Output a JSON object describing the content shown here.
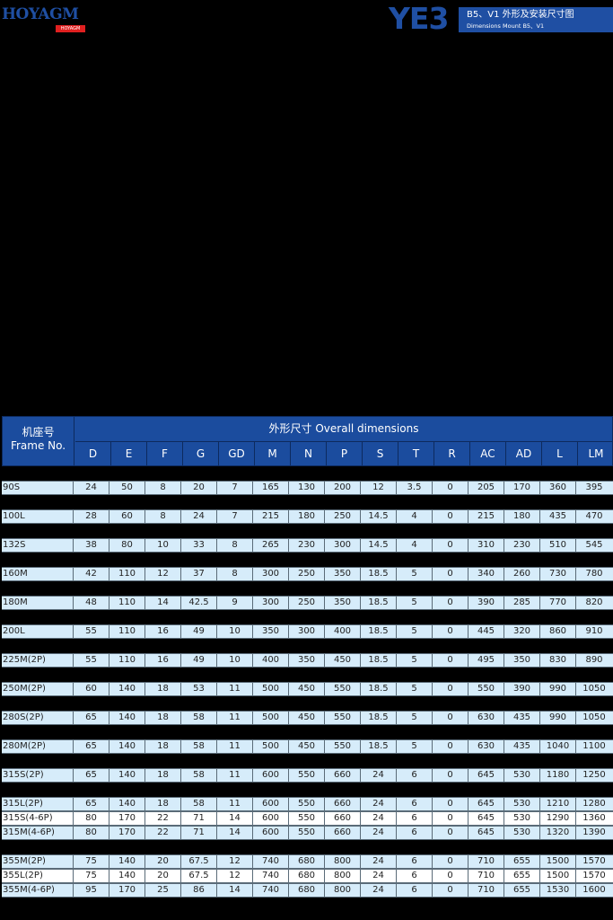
{
  "brand": {
    "logo": "HOYAGM",
    "logo_sub": "HOYAGM MOTOR"
  },
  "header": {
    "model": "YE3",
    "title_cn": "B5、V1 外形及安装尺寸图",
    "title_en": "Dimensions Mount B5、V1"
  },
  "table": {
    "frame_header_cn": "机座号",
    "frame_header_en": "Frame No.",
    "span_header": "外形尺寸 Overall dimensions",
    "columns": [
      "D",
      "E",
      "F",
      "G",
      "GD",
      "M",
      "N",
      "P",
      "S",
      "T",
      "R",
      "AC",
      "AD",
      "L",
      "LM"
    ],
    "rows": [
      {
        "frame": "90S",
        "values": [
          "24",
          "50",
          "8",
          "20",
          "7",
          "165",
          "130",
          "200",
          "12",
          "3.5",
          "0",
          "205",
          "170",
          "360",
          "395"
        ]
      },
      {
        "frame": "100L",
        "values": [
          "28",
          "60",
          "8",
          "24",
          "7",
          "215",
          "180",
          "250",
          "14.5",
          "4",
          "0",
          "215",
          "180",
          "435",
          "470"
        ]
      },
      {
        "frame": "132S",
        "values": [
          "38",
          "80",
          "10",
          "33",
          "8",
          "265",
          "230",
          "300",
          "14.5",
          "4",
          "0",
          "310",
          "230",
          "510",
          "545"
        ]
      },
      {
        "frame": "160M",
        "values": [
          "42",
          "110",
          "12",
          "37",
          "8",
          "300",
          "250",
          "350",
          "18.5",
          "5",
          "0",
          "340",
          "260",
          "730",
          "780"
        ]
      },
      {
        "frame": "180M",
        "values": [
          "48",
          "110",
          "14",
          "42.5",
          "9",
          "300",
          "250",
          "350",
          "18.5",
          "5",
          "0",
          "390",
          "285",
          "770",
          "820"
        ]
      },
      {
        "frame": "200L",
        "values": [
          "55",
          "110",
          "16",
          "49",
          "10",
          "350",
          "300",
          "400",
          "18.5",
          "5",
          "0",
          "445",
          "320",
          "860",
          "910"
        ]
      },
      {
        "frame": "225M(2P)",
        "values": [
          "55",
          "110",
          "16",
          "49",
          "10",
          "400",
          "350",
          "450",
          "18.5",
          "5",
          "0",
          "495",
          "350",
          "830",
          "890"
        ]
      },
      {
        "frame": "250M(2P)",
        "values": [
          "60",
          "140",
          "18",
          "53",
          "11",
          "500",
          "450",
          "550",
          "18.5",
          "5",
          "0",
          "550",
          "390",
          "990",
          "1050"
        ]
      },
      {
        "frame": "280S(2P)",
        "values": [
          "65",
          "140",
          "18",
          "58",
          "11",
          "500",
          "450",
          "550",
          "18.5",
          "5",
          "0",
          "630",
          "435",
          "990",
          "1050"
        ]
      },
      {
        "frame": "280M(2P)",
        "values": [
          "65",
          "140",
          "18",
          "58",
          "11",
          "500",
          "450",
          "550",
          "18.5",
          "5",
          "0",
          "630",
          "435",
          "1040",
          "1100"
        ]
      },
      {
        "frame": "315S(2P)",
        "values": [
          "65",
          "140",
          "18",
          "58",
          "11",
          "600",
          "550",
          "660",
          "24",
          "6",
          "0",
          "645",
          "530",
          "1180",
          "1250"
        ]
      },
      {
        "frame": "315L(2P)",
        "values": [
          "65",
          "140",
          "18",
          "58",
          "11",
          "600",
          "550",
          "660",
          "24",
          "6",
          "0",
          "645",
          "530",
          "1210",
          "1280"
        ]
      },
      {
        "frame": "315S(4-6P)",
        "values": [
          "80",
          "170",
          "22",
          "71",
          "14",
          "600",
          "550",
          "660",
          "24",
          "6",
          "0",
          "645",
          "530",
          "1290",
          "1360"
        ]
      },
      {
        "frame": "315M(4-6P)",
        "values": [
          "80",
          "170",
          "22",
          "71",
          "14",
          "600",
          "550",
          "660",
          "24",
          "6",
          "0",
          "645",
          "530",
          "1320",
          "1390"
        ]
      },
      {
        "frame": "355M(2P)",
        "values": [
          "75",
          "140",
          "20",
          "67.5",
          "12",
          "740",
          "680",
          "800",
          "24",
          "6",
          "0",
          "710",
          "655",
          "1500",
          "1570"
        ]
      },
      {
        "frame": "355L(2P)",
        "values": [
          "75",
          "140",
          "20",
          "67.5",
          "12",
          "740",
          "680",
          "800",
          "24",
          "6",
          "0",
          "710",
          "655",
          "1500",
          "1570"
        ]
      },
      {
        "frame": "355M(4-6P)",
        "values": [
          "95",
          "170",
          "25",
          "86",
          "14",
          "740",
          "680",
          "800",
          "24",
          "6",
          "0",
          "710",
          "655",
          "1530",
          "1600"
        ]
      }
    ]
  },
  "colors": {
    "brand_blue": "#1f4fa3",
    "header_blue": "#1b4c9e",
    "row_light": "#d6ecfa",
    "row_white": "#ffffff",
    "accent_red": "#e02020"
  }
}
